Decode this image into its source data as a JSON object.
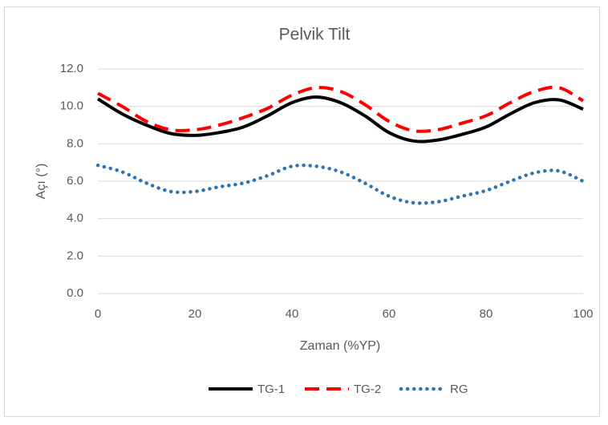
{
  "chart_data": {
    "type": "line",
    "title": "Pelvik Tilt",
    "x_label": "Zaman (%YP)",
    "y_label": "Açı (°)",
    "x": [
      0,
      5,
      10,
      15,
      20,
      25,
      30,
      35,
      40,
      45,
      50,
      55,
      60,
      65,
      70,
      75,
      80,
      85,
      90,
      95,
      100
    ],
    "series": [
      {
        "name": "TG-1",
        "color": "#000000",
        "dash": "solid",
        "values": [
          10.4,
          9.6,
          9.0,
          8.55,
          8.45,
          8.6,
          8.9,
          9.5,
          10.2,
          10.5,
          10.2,
          9.5,
          8.6,
          8.15,
          8.2,
          8.5,
          8.9,
          9.6,
          10.2,
          10.35,
          9.85
        ]
      },
      {
        "name": "TG-2",
        "color": "#ff0000",
        "dash": "dashed",
        "values": [
          10.7,
          10.0,
          9.2,
          8.75,
          8.75,
          9.0,
          9.4,
          9.9,
          10.6,
          11.0,
          10.8,
          10.1,
          9.2,
          8.7,
          8.75,
          9.1,
          9.5,
          10.2,
          10.8,
          11.0,
          10.3
        ]
      },
      {
        "name": "RG",
        "color": "#2e75b6",
        "dash": "dotted",
        "values": [
          6.85,
          6.5,
          5.9,
          5.45,
          5.45,
          5.7,
          5.9,
          6.3,
          6.8,
          6.8,
          6.5,
          5.9,
          5.2,
          4.85,
          4.9,
          5.2,
          5.5,
          6.0,
          6.45,
          6.55,
          6.0
        ]
      }
    ],
    "xlim": [
      0,
      100
    ],
    "xticks": [
      0,
      20,
      40,
      60,
      80,
      100
    ],
    "ylim": [
      0,
      12
    ],
    "yticks": [
      {
        "value": 0,
        "label": "0.0"
      },
      {
        "value": 2,
        "label": "2.0"
      },
      {
        "value": 4,
        "label": "4.0"
      },
      {
        "value": 6,
        "label": "6.0"
      },
      {
        "value": 8,
        "label": "8.0"
      },
      {
        "value": 10,
        "label": "10.0"
      },
      {
        "value": 12,
        "label": "12.0"
      }
    ],
    "grid": true,
    "legend": "bottom"
  }
}
